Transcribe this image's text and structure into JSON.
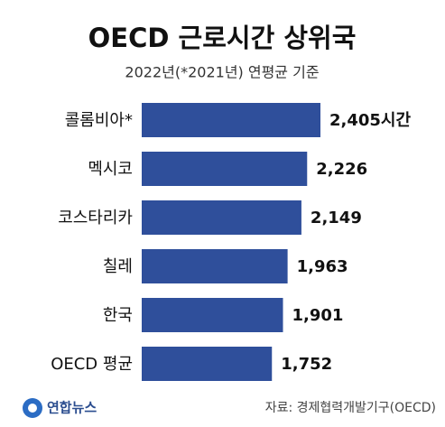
{
  "chart_data": {
    "type": "barh",
    "title": "OECD 근로시간 상위국",
    "subtitle": "2022년(*2021년) 연평균 기준",
    "categories": [
      "콜롬비아*",
      "멕시코",
      "코스타리카",
      "칠레",
      "한국",
      "OECD 평균"
    ],
    "values": [
      2405,
      2226,
      2149,
      1963,
      1901,
      1752
    ],
    "value_labels": [
      "2,405시간",
      "2,226",
      "2,149",
      "1,963",
      "1,901",
      "1,752"
    ],
    "color": "#2f4f9b",
    "source": "자료: 경제협력개발기구(OECD)",
    "logo": "연합뉴스"
  }
}
